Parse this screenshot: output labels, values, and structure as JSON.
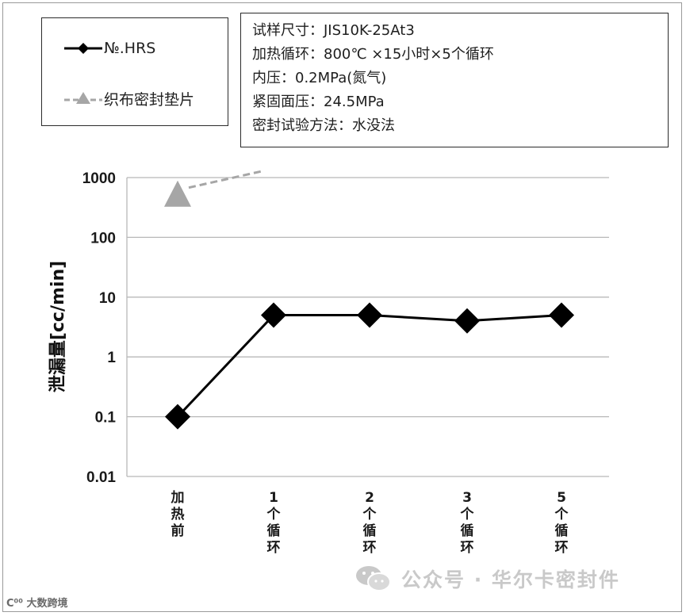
{
  "chart_data": {
    "type": "line",
    "categories": [
      "加热前",
      "1个循环",
      "2个循环",
      "3个循环",
      "5个循环"
    ],
    "category_labels": [
      {
        "lines": [
          "加",
          "热",
          "前"
        ]
      },
      {
        "lines": [
          "1",
          "个",
          "循",
          "环"
        ]
      },
      {
        "lines": [
          "2",
          "个",
          "循",
          "环"
        ]
      },
      {
        "lines": [
          "3",
          "个",
          "循",
          "环"
        ]
      },
      {
        "lines": [
          "5",
          "个",
          "循",
          "环"
        ]
      }
    ],
    "ylabel": "泄漏量[cc/min]",
    "yscale": "log",
    "ylim": [
      0.01,
      1000
    ],
    "yticks": [
      {
        "value": 0.01,
        "label": "0.01"
      },
      {
        "value": 0.1,
        "label": "0.1"
      },
      {
        "value": 1,
        "label": "1"
      },
      {
        "value": 10,
        "label": "10"
      },
      {
        "value": 100,
        "label": "100"
      },
      {
        "value": 1000,
        "label": "1000"
      }
    ],
    "grid": "horizontal",
    "series": [
      {
        "name": "No.HRS",
        "marker": "diamond",
        "color": "#000000",
        "values": [
          0.1,
          5,
          5,
          4,
          5
        ]
      },
      {
        "name": "织布密封垫片",
        "marker": "triangle",
        "color": "#a6a6a6",
        "line_style": "dashed",
        "values": [
          500,
          null,
          null,
          null,
          null
        ]
      }
    ]
  },
  "legend": {
    "items": [
      {
        "label": "№.HRS",
        "marker": "diamond",
        "color": "#000000"
      },
      {
        "label": "织布密封垫片",
        "marker": "triangle",
        "color": "#a6a6a6"
      }
    ]
  },
  "conditions": [
    "试样尺寸：JIS10K-25At3",
    "加热循环：800℃ ×15小时×5个循环",
    "内压：0.2MPa(氮气)",
    "紧固面压：24.5MPa",
    "密封试验方法：水没法"
  ],
  "watermark": {
    "text": "公众号 · 华尔卡密封件",
    "icon": "wechat-icon"
  },
  "corner_mark": {
    "text": "C⁰⁰ 大数跨境"
  }
}
